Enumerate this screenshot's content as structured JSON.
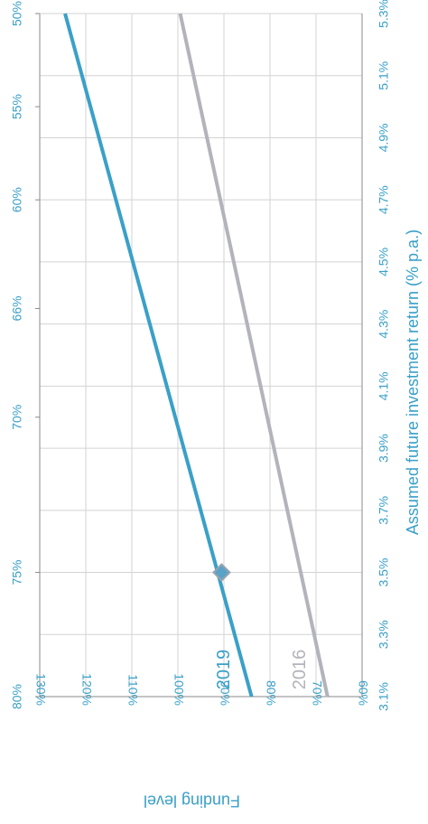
{
  "chart_data": {
    "type": "line",
    "orientation": "rotated-90-clockwise",
    "title": "",
    "xlabel": "Assumed future investment return (% p.a.)",
    "ylabel": "Funding level",
    "x_ticks": [
      "3.1%",
      "3.3%",
      "3.5%",
      "3.7%",
      "3.9%",
      "4.1%",
      "4.3%",
      "4.5%",
      "4.7%",
      "4.9%",
      "5.1%",
      "5.3%"
    ],
    "x_tick_values": [
      3.1,
      3.3,
      3.5,
      3.7,
      3.9,
      4.1,
      4.3,
      4.5,
      4.7,
      4.9,
      5.1,
      5.3
    ],
    "xlim": [
      3.1,
      5.3
    ],
    "y_ticks": [
      "60%",
      "70%",
      "80%",
      "90%",
      "100%",
      "110%",
      "120%",
      "130%"
    ],
    "y_tick_values": [
      60,
      70,
      80,
      90,
      100,
      110,
      120,
      130
    ],
    "ylim": [
      60,
      130
    ],
    "secondary_x_ticks": [
      "80%",
      "75%",
      "70%",
      "66%",
      "60%",
      "55%",
      "50%"
    ],
    "secondary_x_tick_positions": [
      3.1,
      3.5,
      4.0,
      4.35,
      4.7,
      5.0,
      5.3
    ],
    "grid": true,
    "series": [
      {
        "name": "2016",
        "x": [
          3.1,
          5.3
        ],
        "y": [
          67.5,
          99.5
        ],
        "color": "#b3b3bb"
      },
      {
        "name": "2019",
        "x": [
          3.1,
          5.3
        ],
        "y": [
          84,
          124.5
        ],
        "color": "#3aa0c8"
      }
    ],
    "marker": {
      "series": "2019",
      "x": 3.5,
      "y": 90.5,
      "color": "#3aa0c8"
    }
  }
}
